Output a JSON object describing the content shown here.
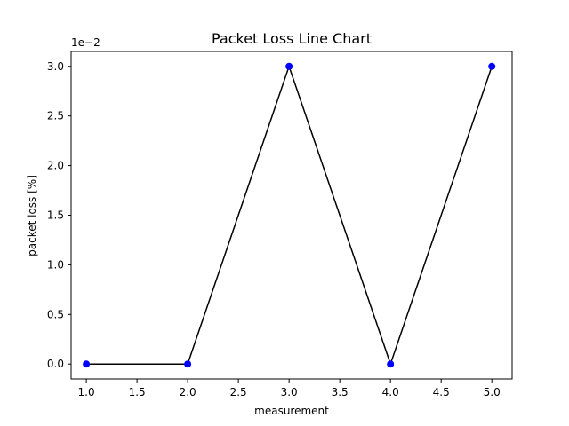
{
  "chart_data": {
    "type": "line",
    "title": "Packet Loss Line Chart",
    "xlabel": "measurement",
    "ylabel": "packet loss [%]",
    "y_offset_label": "1e−2",
    "x": [
      1.0,
      2.0,
      3.0,
      4.0,
      5.0
    ],
    "series": [
      {
        "values": [
          0.0,
          0.0,
          0.03,
          0.0,
          0.03
        ]
      }
    ],
    "xlim": [
      0.85,
      5.2
    ],
    "ylim": [
      -0.0015,
      0.0315
    ],
    "x_ticks": [
      1.0,
      1.5,
      2.0,
      2.5,
      3.0,
      3.5,
      4.0,
      4.5,
      5.0
    ],
    "x_tick_labels": [
      "1.0",
      "1.5",
      "2.0",
      "2.5",
      "3.0",
      "3.5",
      "4.0",
      "4.5",
      "5.0"
    ],
    "y_ticks": [
      0.0,
      0.005,
      0.01,
      0.015,
      0.02,
      0.025,
      0.03
    ],
    "y_tick_labels": [
      "0.0",
      "0.5",
      "1.0",
      "1.5",
      "2.0",
      "2.5",
      "3.0"
    ],
    "grid": false,
    "colors": {
      "line": "#000000",
      "marker": "#0000ff"
    }
  }
}
